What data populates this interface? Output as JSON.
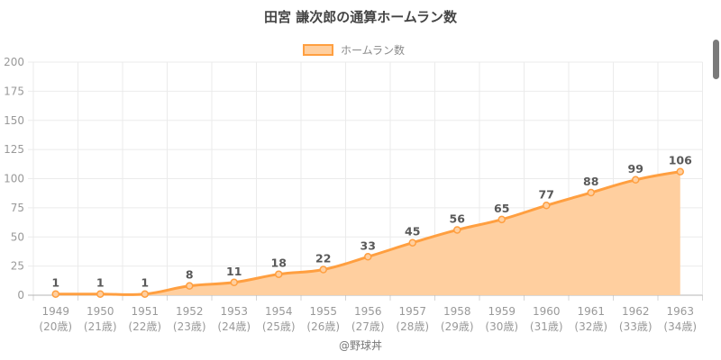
{
  "header": {
    "title": "田宮 謙次郎の通算ホームラン数"
  },
  "legend": {
    "label": "ホームラン数"
  },
  "footer": {
    "credit": "@野球丼"
  },
  "chart_data": {
    "type": "area",
    "title": "田宮 謙次郎の通算ホームラン数",
    "series_name": "ホームラン数",
    "categories": [
      "1949",
      "1950",
      "1951",
      "1952",
      "1953",
      "1954",
      "1955",
      "1956",
      "1957",
      "1958",
      "1959",
      "1960",
      "1961",
      "1962",
      "1963"
    ],
    "category_sublabels": [
      "(20歳)",
      "(21歳)",
      "(22歳)",
      "(23歳)",
      "(24歳)",
      "(25歳)",
      "(26歳)",
      "(27歳)",
      "(28歳)",
      "(29歳)",
      "(30歳)",
      "(31歳)",
      "(32歳)",
      "(33歳)",
      "(34歳)"
    ],
    "values": [
      1,
      1,
      1,
      8,
      11,
      18,
      22,
      33,
      45,
      56,
      65,
      77,
      88,
      99,
      106
    ],
    "xlabel": "",
    "ylabel": "",
    "ylim": [
      0,
      200
    ],
    "ytick_step": 25,
    "yticks": [
      0,
      25,
      50,
      75,
      100,
      125,
      150,
      175,
      200
    ],
    "grid": true,
    "legend_position": "top",
    "colors": {
      "line": "#ff9f40",
      "fill": "#ffcf9f",
      "point_fill": "#ffcf9f",
      "grid_line": "#ebebeb",
      "axis_line": "#b5b5b5",
      "boundary_tick": "#d6d6d6",
      "tick_label": "#999999",
      "data_label": "#595959",
      "title": "#444444",
      "legend_label": "#8a8a8a",
      "credit": "#777777",
      "scrollbar": "#7a7a7a"
    }
  }
}
